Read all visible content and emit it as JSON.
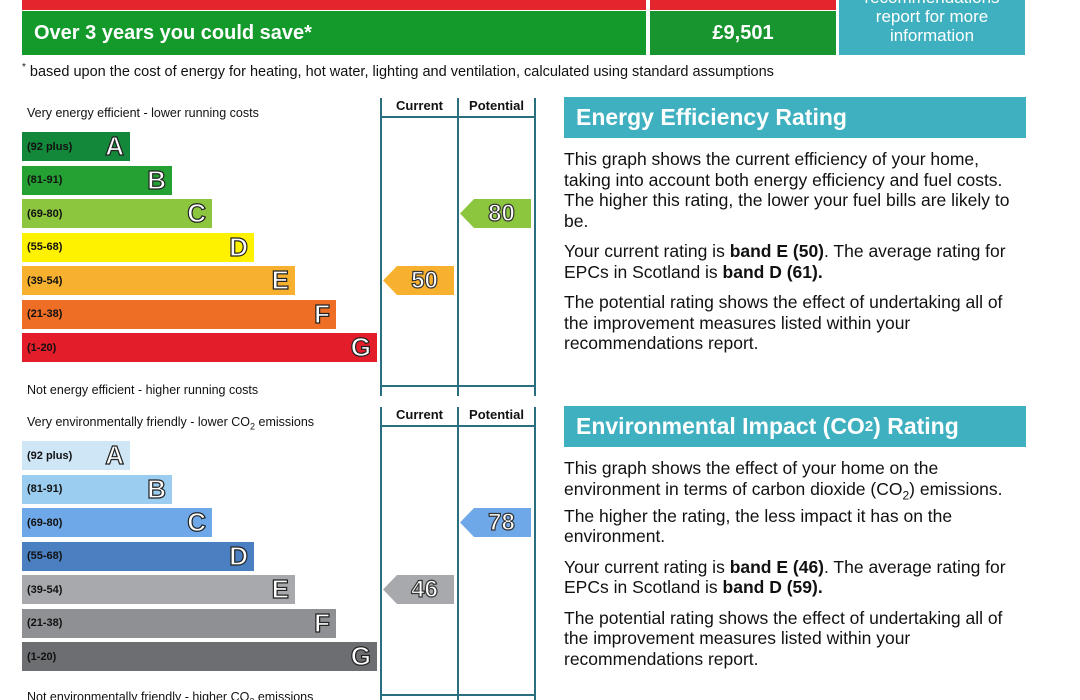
{
  "savings": {
    "label": "Over 3 years you could save*",
    "amount": "£9,501",
    "info_line0": "recommendations",
    "info_line1": "report for more",
    "info_line2": "information"
  },
  "footnote": "based upon the cost of energy for heating, hot water, lighting and ventilation, calculated using standard assumptions",
  "energy_chart": {
    "top_label": "Very energy efficient - lower running costs",
    "bottom_label": "Not energy efficient - higher running costs",
    "col_current": "Current",
    "col_potential": "Potential",
    "bands": [
      {
        "range": "(92 plus)",
        "letter": "A",
        "color": "#13873a"
      },
      {
        "range": "(81-91)",
        "letter": "B",
        "color": "#25a133"
      },
      {
        "range": "(69-80)",
        "letter": "C",
        "color": "#8cc63f"
      },
      {
        "range": "(55-68)",
        "letter": "D",
        "color": "#fff200"
      },
      {
        "range": "(39-54)",
        "letter": "E",
        "color": "#f7b12e"
      },
      {
        "range": "(21-38)",
        "letter": "F",
        "color": "#ee6e25"
      },
      {
        "range": "(1-20)",
        "letter": "G",
        "color": "#e31d2a"
      }
    ],
    "current": {
      "value": "50",
      "band_index": 4,
      "color": "#f7b12e"
    },
    "potential": {
      "value": "80",
      "band_index": 2,
      "color": "#8cc63f"
    }
  },
  "co2_chart": {
    "top_label_pre": "Very environmentally friendly - lower CO",
    "top_label_sub": "2",
    "top_label_post": " emissions",
    "bottom_label_pre": "Not environmentally friendly - higher CO",
    "bottom_label_sub": "2",
    "bottom_label_post": " emissions",
    "col_current": "Current",
    "col_potential": "Potential",
    "bands": [
      {
        "range": "(92 plus)",
        "letter": "A",
        "color": "#cfe6f7"
      },
      {
        "range": "(81-91)",
        "letter": "B",
        "color": "#9bcdf0"
      },
      {
        "range": "(69-80)",
        "letter": "C",
        "color": "#6fa8e8"
      },
      {
        "range": "(55-68)",
        "letter": "D",
        "color": "#4a7fc1"
      },
      {
        "range": "(39-54)",
        "letter": "E",
        "color": "#a7a9ac"
      },
      {
        "range": "(21-38)",
        "letter": "F",
        "color": "#8e9093"
      },
      {
        "range": "(1-20)",
        "letter": "G",
        "color": "#6d6e71"
      }
    ],
    "current": {
      "value": "46",
      "band_index": 4,
      "color": "#a7a9ac"
    },
    "potential": {
      "value": "78",
      "band_index": 2,
      "color": "#6fa8e8"
    }
  },
  "energy_panel": {
    "heading": "Energy Efficiency Rating",
    "p1": "This graph shows the current efficiency of your home, taking into account both energy efficiency and fuel costs. The higher this rating, the lower your fuel bills are likely to be.",
    "p2_pre": "Your current rating is ",
    "p2_bold1": "band E (50)",
    "p2_mid": ". The average rating for EPCs in Scotland is ",
    "p2_bold2": "band D (61).",
    "p3": "The potential rating shows the effect of undertaking all of the improvement measures listed within your recommendations report."
  },
  "co2_panel": {
    "heading_pre": "Environmental Impact (CO",
    "heading_sub": "2",
    "heading_post": ") Rating",
    "p1_pre": "This graph shows the effect of your home on the environment in terms of carbon dioxide (CO",
    "p1_sub": "2",
    "p1_post": ") emissions. The higher the rating, the less impact it has on the environment.",
    "p2_pre": "Your current rating is ",
    "p2_bold1": "band E (46)",
    "p2_mid": ". The average rating for EPCs in Scotland is ",
    "p2_bold2": "band D (59).",
    "p3": "The potential rating shows the effect of undertaking all of the improvement measures listed within your recommendations report."
  }
}
